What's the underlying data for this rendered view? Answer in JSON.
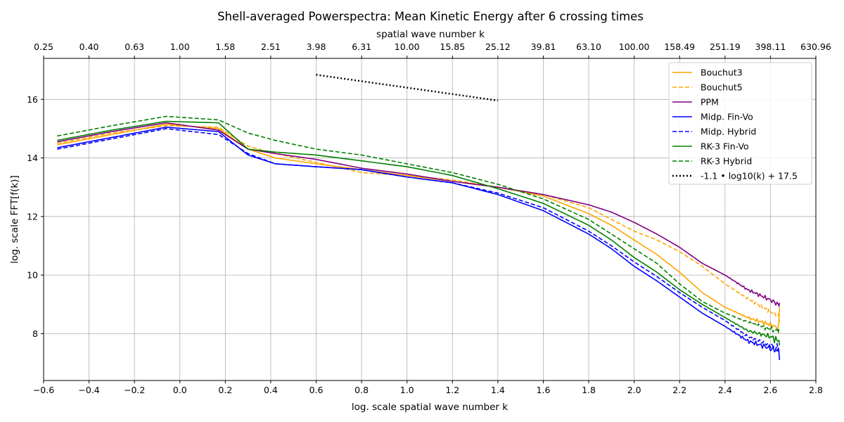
{
  "chart_data": {
    "type": "line",
    "title": "Shell-averaged Powerspectra: Mean Kinetic Energy after 6 crossing times",
    "xlabel": "log. scale spatial wave number k",
    "ylabel": "log. scale FFT[f(k)]",
    "top_xlabel": "spatial wave number k",
    "xlim": [
      -0.6,
      2.8
    ],
    "ylim": [
      6.4,
      17.4
    ],
    "grid": true,
    "legend_position": "top-right",
    "x_ticks": [
      -0.6,
      -0.4,
      -0.2,
      0.0,
      0.2,
      0.4,
      0.6,
      0.8,
      1.0,
      1.2,
      1.4,
      1.6,
      1.8,
      2.0,
      2.2,
      2.4,
      2.6,
      2.8
    ],
    "x_tick_labels": [
      "−0.6",
      "−0.4",
      "−0.2",
      "0.0",
      "0.2",
      "0.4",
      "0.6",
      "0.8",
      "1.0",
      "1.2",
      "1.4",
      "1.6",
      "1.8",
      "2.0",
      "2.2",
      "2.4",
      "2.6",
      "2.8"
    ],
    "y_ticks": [
      8,
      10,
      12,
      14,
      16
    ],
    "y_tick_labels": [
      "8",
      "10",
      "12",
      "14",
      "16"
    ],
    "top_ticks": [
      -0.6,
      -0.4,
      -0.2,
      0.0,
      0.2,
      0.4,
      0.6,
      0.8,
      1.0,
      1.2,
      1.4,
      1.6,
      1.8,
      2.0,
      2.2,
      2.4,
      2.6,
      2.8
    ],
    "top_tick_labels": [
      "0.25",
      "0.40",
      "0.63",
      "1.00",
      "1.58",
      "2.51",
      "3.98",
      "6.31",
      "10.00",
      "15.85",
      "25.12",
      "39.81",
      "63.10",
      "100.00",
      "158.49",
      "251.19",
      "398.11",
      "630.96"
    ],
    "series": [
      {
        "name": "Bouchut3",
        "color": "#ffa500",
        "dash": "solid",
        "noise": 0.12,
        "x": [
          -0.54,
          -0.3,
          -0.06,
          0.17,
          0.3,
          0.42,
          0.6,
          0.8,
          1.0,
          1.2,
          1.4,
          1.6,
          1.8,
          1.9,
          2.0,
          2.1,
          2.2,
          2.3,
          2.4,
          2.5,
          2.6,
          2.635,
          2.64
        ],
        "y": [
          14.45,
          14.8,
          15.15,
          15.0,
          14.3,
          14.0,
          13.8,
          13.6,
          13.4,
          13.2,
          13.0,
          12.7,
          12.1,
          11.7,
          11.2,
          10.7,
          10.1,
          9.4,
          8.9,
          8.55,
          8.3,
          8.2,
          8.9
        ]
      },
      {
        "name": "Bouchut5",
        "color": "#ffa500",
        "dash": "dashed",
        "noise": 0.1,
        "x": [
          -0.54,
          -0.3,
          -0.06,
          0.17,
          0.3,
          0.42,
          0.6,
          0.8,
          1.0,
          1.2,
          1.4,
          1.6,
          1.8,
          1.9,
          2.0,
          2.1,
          2.2,
          2.3,
          2.4,
          2.5,
          2.6,
          2.635,
          2.64
        ],
        "y": [
          14.5,
          14.85,
          15.1,
          15.05,
          14.4,
          14.15,
          13.85,
          13.5,
          13.4,
          13.25,
          13.0,
          12.75,
          12.3,
          11.9,
          11.5,
          11.2,
          10.8,
          10.3,
          9.7,
          9.2,
          8.75,
          8.6,
          8.4
        ]
      },
      {
        "name": "PPM",
        "color": "#800080",
        "dash": "solid",
        "noise": 0.12,
        "x": [
          -0.54,
          -0.3,
          -0.06,
          0.17,
          0.3,
          0.42,
          0.6,
          0.8,
          1.0,
          1.2,
          1.4,
          1.6,
          1.8,
          1.9,
          2.0,
          2.1,
          2.2,
          2.3,
          2.4,
          2.5,
          2.6,
          2.635,
          2.64
        ],
        "y": [
          14.55,
          14.9,
          15.2,
          14.95,
          14.3,
          14.15,
          13.95,
          13.65,
          13.45,
          13.2,
          13.0,
          12.75,
          12.4,
          12.15,
          11.8,
          11.4,
          10.95,
          10.4,
          10.0,
          9.5,
          9.15,
          9.0,
          9.05
        ]
      },
      {
        "name": "Midp. Fin-Vo",
        "color": "#0000ff",
        "dash": "solid",
        "noise": 0.18,
        "x": [
          -0.54,
          -0.3,
          -0.06,
          0.17,
          0.3,
          0.42,
          0.6,
          0.8,
          1.0,
          1.2,
          1.4,
          1.6,
          1.8,
          1.9,
          2.0,
          2.1,
          2.2,
          2.3,
          2.4,
          2.5,
          2.6,
          2.635,
          2.64
        ],
        "y": [
          14.35,
          14.7,
          15.05,
          14.9,
          14.1,
          13.8,
          13.7,
          13.6,
          13.35,
          13.15,
          12.75,
          12.2,
          11.4,
          10.9,
          10.3,
          9.8,
          9.25,
          8.7,
          8.25,
          7.75,
          7.5,
          7.4,
          7.1
        ]
      },
      {
        "name": "Midp. Hybrid",
        "color": "#0000ff",
        "dash": "dashed",
        "noise": 0.15,
        "x": [
          -0.54,
          -0.3,
          -0.06,
          0.17,
          0.3,
          0.42,
          0.6,
          0.8,
          1.0,
          1.2,
          1.4,
          1.6,
          1.8,
          1.9,
          2.0,
          2.1,
          2.2,
          2.3,
          2.4,
          2.5,
          2.6,
          2.635,
          2.64
        ],
        "y": [
          14.3,
          14.65,
          15.0,
          14.8,
          14.15,
          13.8,
          13.7,
          13.6,
          13.35,
          13.15,
          12.8,
          12.3,
          11.5,
          11.0,
          10.45,
          9.95,
          9.4,
          8.9,
          8.45,
          7.9,
          7.6,
          7.5,
          7.4
        ]
      },
      {
        "name": "RK-3  Fin-Vo",
        "color": "#008000",
        "dash": "solid",
        "noise": 0.15,
        "x": [
          -0.54,
          -0.3,
          -0.06,
          0.17,
          0.3,
          0.42,
          0.6,
          0.8,
          1.0,
          1.2,
          1.4,
          1.6,
          1.8,
          1.9,
          2.0,
          2.1,
          2.2,
          2.3,
          2.4,
          2.5,
          2.6,
          2.635,
          2.64
        ],
        "y": [
          14.6,
          14.95,
          15.25,
          15.2,
          14.3,
          14.2,
          14.1,
          13.9,
          13.7,
          13.4,
          12.95,
          12.45,
          11.7,
          11.2,
          10.6,
          10.1,
          9.5,
          9.0,
          8.55,
          8.1,
          7.9,
          7.75,
          7.6
        ]
      },
      {
        "name": "RK-3  Hybrid",
        "color": "#008000",
        "dash": "dashed",
        "noise": 0.12,
        "x": [
          -0.54,
          -0.3,
          -0.06,
          0.17,
          0.3,
          0.42,
          0.6,
          0.8,
          1.0,
          1.2,
          1.4,
          1.6,
          1.8,
          1.9,
          2.0,
          2.1,
          2.2,
          2.3,
          2.4,
          2.5,
          2.6,
          2.635,
          2.64
        ],
        "y": [
          14.75,
          15.1,
          15.42,
          15.3,
          14.85,
          14.6,
          14.3,
          14.1,
          13.8,
          13.5,
          13.1,
          12.6,
          11.9,
          11.4,
          10.9,
          10.4,
          9.7,
          9.1,
          8.7,
          8.4,
          8.15,
          8.1,
          8.2
        ]
      },
      {
        "name": "-1.1 • log10(k) + 17.5",
        "color": "#000000",
        "dash": "dotted",
        "noise": 0,
        "x": [
          0.6,
          1.4
        ],
        "y": [
          16.84,
          15.96
        ]
      }
    ]
  }
}
